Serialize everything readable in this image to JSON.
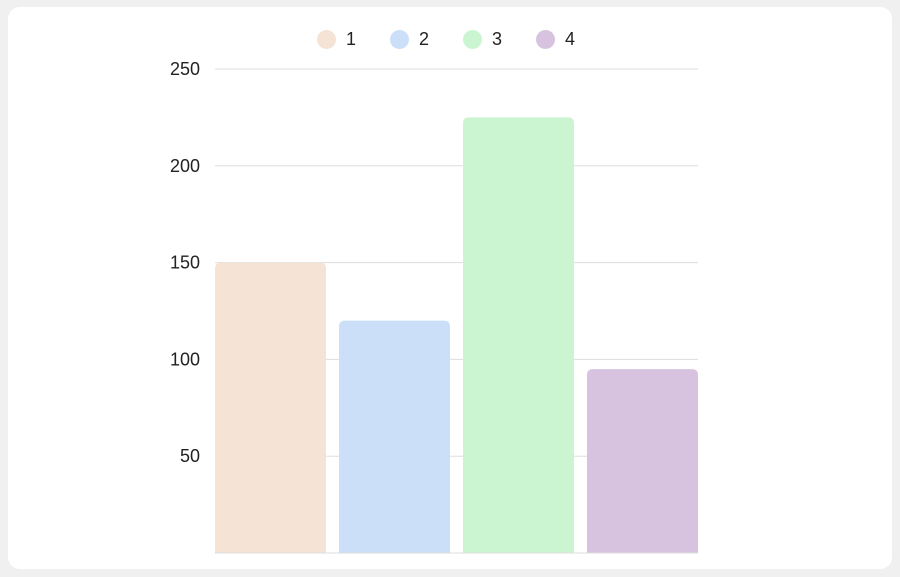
{
  "chart_data": {
    "type": "bar",
    "categories": [
      "1",
      "2",
      "3",
      "4"
    ],
    "values": [
      150,
      120,
      225,
      95
    ],
    "colors": [
      "#f5e3d6",
      "#cbe0f8",
      "#cbf5d1",
      "#d7c3e0"
    ],
    "title": "",
    "xlabel": "",
    "ylabel": "",
    "ylim": [
      0,
      250
    ],
    "yticks": [
      50,
      100,
      150,
      200,
      250
    ],
    "grid": true,
    "legend": "top-center",
    "legend_entries": [
      "1",
      "2",
      "3",
      "4"
    ]
  }
}
